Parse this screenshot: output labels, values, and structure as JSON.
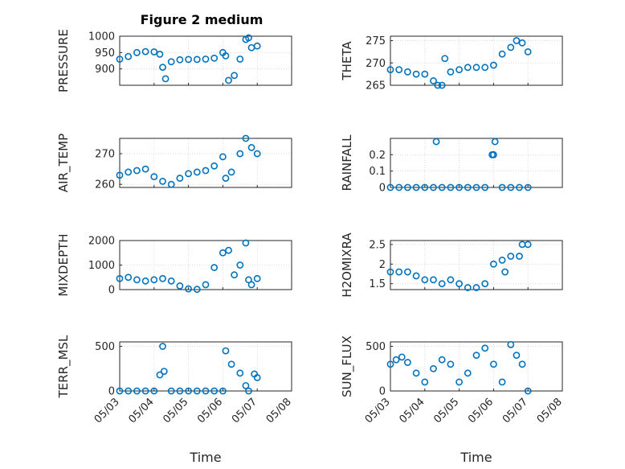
{
  "title": "Figure 2 medium",
  "colors": {
    "marker": "#0072BD",
    "axis": "#262626",
    "grid": "#d9d9d9"
  },
  "chart_data": [
    {
      "type": "scatter",
      "ylabel": "PRESSURE",
      "ylim": [
        850,
        1000
      ],
      "yticks": [
        900,
        950,
        1000
      ],
      "x": [
        "05/03",
        "05/03 06:00",
        "05/03 12:00",
        "05/03 18:00",
        "05/04",
        "05/04 04:00",
        "05/04 06:00",
        "05/04 08:00",
        "05/04 12:00",
        "05/04 18:00",
        "05/05",
        "05/05 06:00",
        "05/05 12:00",
        "05/05 18:00",
        "05/06",
        "05/06 02:00",
        "05/06 04:00",
        "05/06 08:00",
        "05/06 12:00",
        "05/06 16:00",
        "05/06 18:00",
        "05/06 20:00",
        "05/07"
      ],
      "values": [
        930,
        938,
        950,
        953,
        952,
        945,
        905,
        870,
        922,
        928,
        929,
        929,
        930,
        933,
        950,
        940,
        865,
        880,
        930,
        990,
        995,
        965,
        970
      ]
    },
    {
      "type": "scatter",
      "ylabel": "THETA",
      "ylim": [
        265,
        276
      ],
      "yticks": [
        265,
        270,
        275
      ],
      "x": [
        "05/03",
        "05/03 06:00",
        "05/03 12:00",
        "05/03 18:00",
        "05/04",
        "05/04 06:00",
        "05/04 09:00",
        "05/04 12:00",
        "05/04 14:00",
        "05/04 18:00",
        "05/05",
        "05/05 06:00",
        "05/05 12:00",
        "05/05 18:00",
        "05/06",
        "05/06 06:00",
        "05/06 12:00",
        "05/06 16:00",
        "05/06 20:00",
        "05/07"
      ],
      "values": [
        268.5,
        268.5,
        268,
        267.5,
        267.5,
        266,
        265,
        265,
        271,
        268,
        268.5,
        269,
        269,
        269,
        269.5,
        272,
        273.5,
        275,
        274.5,
        272.5
      ]
    },
    {
      "type": "scatter",
      "ylabel": "AIR_TEMP",
      "ylim": [
        259,
        275
      ],
      "yticks": [
        260,
        270
      ],
      "x": [
        "05/03",
        "05/03 06:00",
        "05/03 12:00",
        "05/03 18:00",
        "05/04",
        "05/04 06:00",
        "05/04 12:00",
        "05/04 18:00",
        "05/05",
        "05/05 06:00",
        "05/05 12:00",
        "05/05 18:00",
        "05/06",
        "05/06 02:00",
        "05/06 06:00",
        "05/06 12:00",
        "05/06 16:00",
        "05/06 20:00",
        "05/07"
      ],
      "values": [
        263,
        264,
        264.5,
        265,
        262.5,
        261,
        260,
        262,
        263.5,
        264,
        264.5,
        266,
        269,
        262,
        264,
        270,
        275,
        272,
        270
      ]
    },
    {
      "type": "scatter",
      "ylabel": "RAINFALL",
      "ylim": [
        0,
        0.3
      ],
      "yticks": [
        0,
        0.1,
        0.2
      ],
      "x": [
        "05/03",
        "05/03 06:00",
        "05/03 12:00",
        "05/03 18:00",
        "05/04",
        "05/04 06:00",
        "05/04 08:00",
        "05/04 12:00",
        "05/04 18:00",
        "05/05",
        "05/05 06:00",
        "05/05 12:00",
        "05/05 18:00",
        "05/05 23:00",
        "05/06",
        "05/06 01:00",
        "05/06 06:00",
        "05/06 12:00",
        "05/06 18:00",
        "05/07"
      ],
      "values": [
        0,
        0,
        0,
        0,
        0,
        0,
        0.28,
        0,
        0,
        0,
        0,
        0,
        0,
        0.2,
        0.2,
        0.28,
        0,
        0,
        0,
        0
      ]
    },
    {
      "type": "scatter",
      "ylabel": "MIXDEPTH",
      "ylim": [
        0,
        2000
      ],
      "yticks": [
        0,
        1000,
        2000
      ],
      "x": [
        "05/03",
        "05/03 06:00",
        "05/03 12:00",
        "05/03 18:00",
        "05/04",
        "05/04 06:00",
        "05/04 12:00",
        "05/04 18:00",
        "05/05",
        "05/05 06:00",
        "05/05 12:00",
        "05/05 18:00",
        "05/06",
        "05/06 04:00",
        "05/06 08:00",
        "05/06 12:00",
        "05/06 16:00",
        "05/06 18:00",
        "05/06 20:00",
        "05/07"
      ],
      "values": [
        450,
        500,
        400,
        350,
        400,
        450,
        350,
        150,
        30,
        10,
        200,
        900,
        1500,
        1600,
        600,
        1000,
        1900,
        400,
        200,
        450
      ]
    },
    {
      "type": "scatter",
      "ylabel": "H2OMIXRA",
      "ylim": [
        1.35,
        2.6
      ],
      "yticks": [
        1.5,
        2,
        2.5
      ],
      "x": [
        "05/03",
        "05/03 06:00",
        "05/03 12:00",
        "05/03 18:00",
        "05/04",
        "05/04 06:00",
        "05/04 12:00",
        "05/04 18:00",
        "05/05",
        "05/05 06:00",
        "05/05 12:00",
        "05/05 18:00",
        "05/06",
        "05/06 06:00",
        "05/06 08:00",
        "05/06 12:00",
        "05/06 18:00",
        "05/06 20:00",
        "05/07"
      ],
      "values": [
        1.8,
        1.8,
        1.8,
        1.7,
        1.6,
        1.6,
        1.5,
        1.6,
        1.5,
        1.4,
        1.4,
        1.5,
        2,
        2.1,
        1.8,
        2.2,
        2.2,
        2.5,
        2.5
      ]
    },
    {
      "type": "scatter",
      "ylabel": "TERR_MSL",
      "ylim": [
        0,
        550
      ],
      "yticks": [
        0,
        500
      ],
      "x": [
        "05/03",
        "05/03 06:00",
        "05/03 12:00",
        "05/03 18:00",
        "05/04",
        "05/04 04:00",
        "05/04 06:00",
        "05/04 07:00",
        "05/04 12:00",
        "05/04 18:00",
        "05/05",
        "05/05 06:00",
        "05/05 12:00",
        "05/05 18:00",
        "05/06",
        "05/06 02:00",
        "05/06 06:00",
        "05/06 12:00",
        "05/06 16:00",
        "05/06 18:00",
        "05/06 22:00",
        "05/07"
      ],
      "values": [
        0,
        0,
        0,
        0,
        0,
        180,
        500,
        220,
        0,
        0,
        0,
        0,
        0,
        0,
        0,
        450,
        300,
        200,
        60,
        0,
        190,
        150
      ]
    },
    {
      "type": "scatter",
      "ylabel": "SUN_FLUX",
      "ylim": [
        0,
        550
      ],
      "yticks": [
        0,
        500
      ],
      "x": [
        "05/03",
        "05/03 04:00",
        "05/03 08:00",
        "05/03 12:00",
        "05/03 18:00",
        "05/04",
        "05/04 06:00",
        "05/04 12:00",
        "05/04 18:00",
        "05/05",
        "05/05 06:00",
        "05/05 12:00",
        "05/05 18:00",
        "05/06",
        "05/06 06:00",
        "05/06 12:00",
        "05/06 16:00",
        "05/06 20:00",
        "05/07"
      ],
      "values": [
        300,
        350,
        380,
        320,
        200,
        100,
        250,
        350,
        300,
        100,
        200,
        400,
        480,
        300,
        100,
        520,
        400,
        300,
        0
      ]
    }
  ],
  "xaxis": {
    "ticks": [
      "05/03",
      "05/04",
      "05/05",
      "05/06",
      "05/07",
      "05/08"
    ],
    "range": [
      "05/03",
      "05/08"
    ],
    "label": "Time"
  },
  "grid": "on"
}
